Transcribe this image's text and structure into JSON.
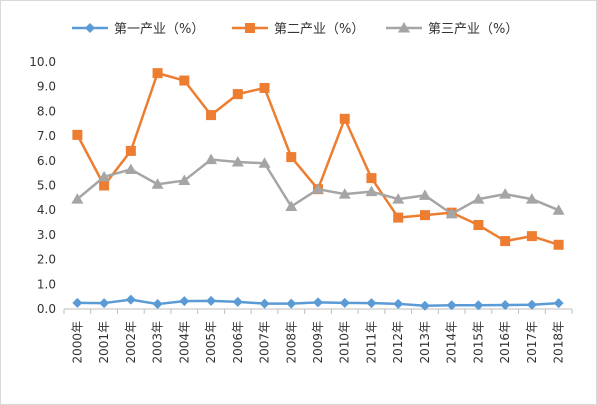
{
  "chart_data": {
    "type": "line",
    "title": "",
    "xlabel": "",
    "ylabel": "",
    "x": [
      "2000年",
      "2001年",
      "2002年",
      "2003年",
      "2004年",
      "2005年",
      "2006年",
      "2007年",
      "2008年",
      "2009年",
      "2010年",
      "2011年",
      "2012年",
      "2013年",
      "2014年",
      "2015年",
      "2016年",
      "2017年",
      "2018年"
    ],
    "ylim": [
      0,
      10
    ],
    "yticks": [
      "0.0",
      "1.0",
      "2.0",
      "3.0",
      "4.0",
      "5.0",
      "6.0",
      "7.0",
      "8.0",
      "9.0",
      "10.0"
    ],
    "grid": false,
    "legend_position": "top",
    "series": [
      {
        "name": "第一产业（%）",
        "color": "#5b9bd5",
        "marker": "diamond",
        "values": [
          0.25,
          0.24,
          0.38,
          0.2,
          0.32,
          0.33,
          0.29,
          0.22,
          0.22,
          0.27,
          0.25,
          0.24,
          0.21,
          0.13,
          0.15,
          0.15,
          0.16,
          0.17,
          0.24
        ]
      },
      {
        "name": "第二产业（%）",
        "color": "#ed7d31",
        "marker": "square",
        "values": [
          7.05,
          5.0,
          6.4,
          9.55,
          9.25,
          7.85,
          8.7,
          8.95,
          6.15,
          4.85,
          7.7,
          5.3,
          3.7,
          3.8,
          3.9,
          3.4,
          2.75,
          2.95,
          2.6
        ]
      },
      {
        "name": "第三产业（%）",
        "color": "#a5a5a5",
        "marker": "triangle",
        "values": [
          4.45,
          5.35,
          5.65,
          5.05,
          5.2,
          6.05,
          5.95,
          5.9,
          4.15,
          4.85,
          4.65,
          4.75,
          4.45,
          4.6,
          3.85,
          4.45,
          4.65,
          4.45,
          4.0
        ]
      }
    ]
  }
}
